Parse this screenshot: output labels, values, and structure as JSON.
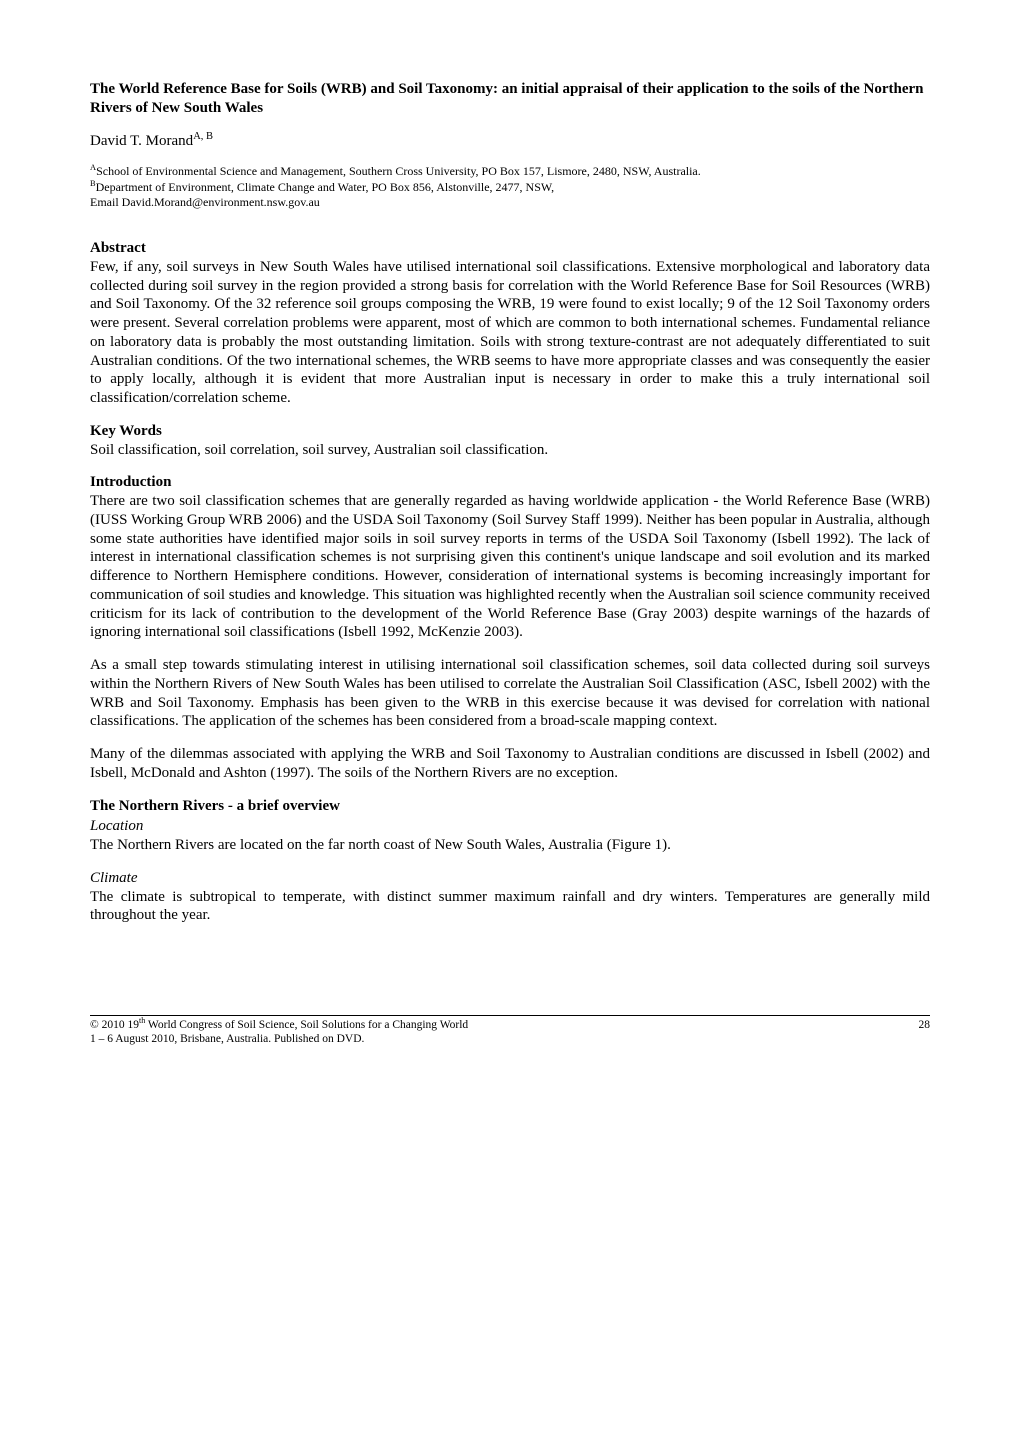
{
  "title": "The World Reference Base for Soils (WRB) and Soil Taxonomy: an initial appraisal of their application to the soils of the Northern Rivers of New South Wales",
  "author_name": "David T. Morand",
  "author_sup": "A, B",
  "affil_a_sup": "A",
  "affil_a": "School of Environmental Science and Management, Southern Cross University, PO Box 157, Lismore, 2480, NSW, Australia.",
  "affil_b_sup": "B",
  "affil_b": "Department of Environment, Climate Change and Water, PO Box 856, Alstonville, 2477, NSW,",
  "affil_email": "Email David.Morand@environment.nsw.gov.au",
  "abstract_head": "Abstract",
  "abstract_body": "Few, if any, soil surveys in New South Wales have utilised international soil classifications. Extensive morphological and laboratory data collected during soil survey in the region provided a strong basis for correlation with the World Reference Base for Soil Resources (WRB) and Soil Taxonomy. Of the 32 reference soil groups composing the WRB, 19 were found to exist locally; 9 of the 12 Soil Taxonomy orders were present. Several correlation problems were apparent, most of which are common to both international schemes. Fundamental reliance on laboratory data is probably the most outstanding limitation. Soils with strong texture-contrast are not adequately differentiated to suit Australian conditions. Of the two international schemes, the WRB seems to have more appropriate classes and was consequently the easier to apply locally, although it is evident that more Australian input is necessary in order to make this a truly international soil classification/correlation scheme.",
  "keywords_head": "Key Words",
  "keywords_body": "Soil classification, soil correlation, soil survey, Australian soil classification.",
  "intro_head": "Introduction",
  "intro_p1": "There are two soil classification schemes that are generally regarded as having worldwide application - the World Reference Base (WRB) (IUSS Working Group WRB 2006) and the USDA Soil Taxonomy (Soil Survey Staff 1999). Neither has been popular in Australia, although some state authorities have identified major soils in soil survey reports in terms of the USDA Soil Taxonomy (Isbell 1992). The lack of interest in international classification schemes is not surprising given this continent's unique landscape and soil evolution and its marked difference to Northern Hemisphere conditions. However, consideration of international systems is becoming increasingly important for communication of soil studies and knowledge. This situation was highlighted recently when the Australian soil science community received criticism for its lack of contribution to the development of the World Reference Base (Gray 2003) despite warnings of the hazards of ignoring international soil classifications (Isbell 1992, McKenzie 2003).",
  "intro_p2": "As a small step towards stimulating interest in utilising international soil classification schemes, soil data collected during soil surveys within the Northern Rivers of New South Wales has been utilised to correlate the Australian Soil Classification (ASC, Isbell 2002) with the WRB and Soil Taxonomy. Emphasis has been given to the WRB in this exercise because it was devised for correlation with national classifications. The application of the schemes has been considered from a broad-scale mapping context.",
  "intro_p3": "Many of the dilemmas associated with applying the WRB and Soil Taxonomy to Australian conditions are discussed in Isbell (2002) and Isbell, McDonald and Ashton (1997). The soils of the Northern Rivers are no exception.",
  "overview_head": "The Northern Rivers - a brief overview",
  "location_head": "Location",
  "location_body": "The Northern Rivers are located on the far north coast of New South Wales, Australia (Figure 1).",
  "climate_head": "Climate",
  "climate_body": "The climate is subtropical to temperate, with distinct summer maximum rainfall and dry winters. Temperatures are generally mild throughout the year.",
  "footer_left_prefix": "© 2010 19",
  "footer_left_sup": "th",
  "footer_left_rest": " World Congress of Soil Science, Soil Solutions for a Changing World",
  "footer_left_line2": "1 – 6 August 2010, Brisbane, Australia.  Published on DVD.",
  "footer_page": "28"
}
